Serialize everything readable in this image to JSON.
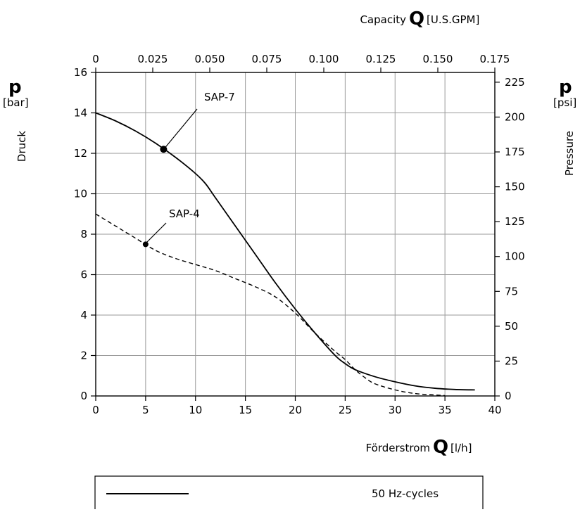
{
  "chart_data": {
    "type": "line",
    "x_axis_bottom": {
      "label": "Förderstrom",
      "symbol": "Q",
      "unit": "[l/h]",
      "range": [
        0,
        40
      ],
      "ticks": [
        "0",
        "5",
        "10",
        "15",
        "20",
        "25",
        "30",
        "35",
        "40"
      ]
    },
    "x_axis_top": {
      "label": "Capacity",
      "symbol": "Q",
      "unit": "[U.S.GPM]",
      "range": [
        0,
        0.175
      ],
      "ticks": [
        "0",
        "0.025",
        "0.050",
        "0.075",
        "0.100",
        "0.125",
        "0.150",
        "0.175"
      ]
    },
    "y_axis_left": {
      "label": "Druck",
      "symbol": "p",
      "unit": "[bar]",
      "range": [
        0,
        16
      ],
      "ticks": [
        "0",
        "2",
        "4",
        "6",
        "8",
        "10",
        "12",
        "14",
        "16"
      ]
    },
    "y_axis_right": {
      "label": "Pressure",
      "symbol": "p",
      "unit": "[psi]",
      "range": [
        0,
        232
      ],
      "ticks": [
        "0",
        "25",
        "50",
        "75",
        "100",
        "125",
        "150",
        "175",
        "200",
        "225"
      ]
    },
    "grid": true,
    "series": [
      {
        "name": "SAP-7",
        "line_style": "solid",
        "marker_at": [
          6.8,
          12.2
        ],
        "x": [
          0,
          2,
          4,
          6,
          8,
          10,
          11,
          12,
          14,
          16,
          18,
          20,
          22,
          24,
          25,
          26,
          28,
          30,
          32,
          34,
          36,
          38
        ],
        "y": [
          14.0,
          13.6,
          13.1,
          12.5,
          11.8,
          11.0,
          10.5,
          9.8,
          8.4,
          7.0,
          5.6,
          4.3,
          3.1,
          2.0,
          1.6,
          1.3,
          0.95,
          0.7,
          0.5,
          0.38,
          0.32,
          0.3
        ]
      },
      {
        "name": "SAP-4",
        "line_style": "dashed",
        "marker_at": [
          5.0,
          7.5
        ],
        "x": [
          0,
          2,
          4,
          6,
          8,
          10,
          12,
          14,
          16,
          18,
          20,
          22,
          24,
          25,
          26,
          27,
          28,
          30,
          32,
          34,
          35
        ],
        "y": [
          9.0,
          8.4,
          7.8,
          7.2,
          6.8,
          6.5,
          6.2,
          5.8,
          5.4,
          4.9,
          4.1,
          3.1,
          2.2,
          1.8,
          1.3,
          0.9,
          0.6,
          0.3,
          0.12,
          0.05,
          0.02
        ]
      }
    ],
    "legend": {
      "position": "bottom",
      "entries": [
        {
          "line_style": "solid",
          "label": "50 Hz-cycles"
        }
      ]
    }
  }
}
